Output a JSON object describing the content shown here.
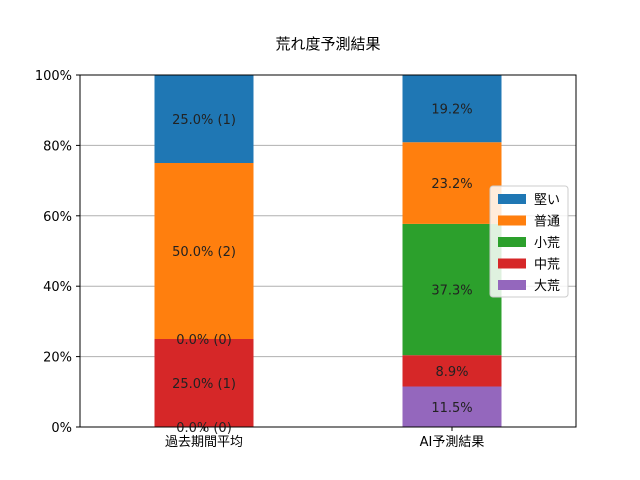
{
  "chart_data": {
    "type": "bar",
    "stacked": true,
    "title": "荒れ度予測結果",
    "categories": [
      "過去期間平均",
      "AI予測結果"
    ],
    "yticks": [
      "0%",
      "20%",
      "40%",
      "60%",
      "80%",
      "100%"
    ],
    "ylim": [
      0,
      100
    ],
    "grid": "y",
    "legend_position": "right",
    "series": [
      {
        "name": "大荒",
        "color": "#9467bd",
        "values": [
          0.0,
          11.5
        ],
        "labels": [
          "0.0% (0)",
          "11.5%"
        ]
      },
      {
        "name": "中荒",
        "color": "#d62728",
        "values": [
          25.0,
          8.9
        ],
        "labels": [
          "25.0% (1)",
          "8.9%"
        ]
      },
      {
        "name": "小荒",
        "color": "#2ca02c",
        "values": [
          0.0,
          37.3
        ],
        "labels": [
          "0.0% (0)",
          "37.3%"
        ]
      },
      {
        "name": "普通",
        "color": "#ff7f0e",
        "values": [
          50.0,
          23.2
        ],
        "labels": [
          "50.0% (2)",
          "23.2%"
        ]
      },
      {
        "name": "堅い",
        "color": "#1f77b4",
        "values": [
          25.0,
          19.2
        ],
        "labels": [
          "25.0% (1)",
          "19.2%"
        ]
      }
    ],
    "legend_order": [
      "堅い",
      "普通",
      "小荒",
      "中荒",
      "大荒"
    ]
  }
}
